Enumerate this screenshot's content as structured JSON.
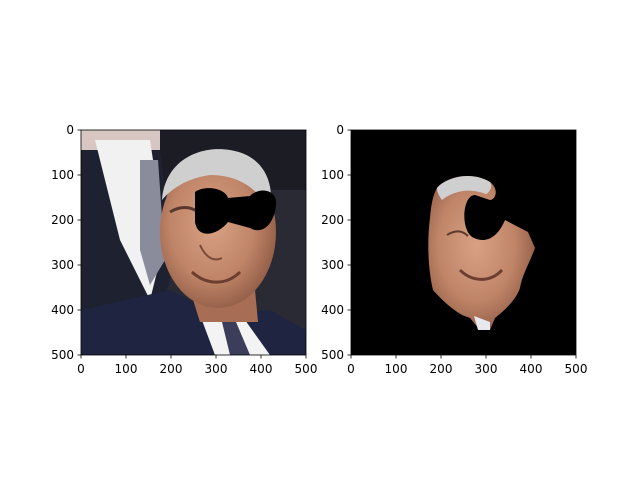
{
  "figure": {
    "background": "#ffffff"
  },
  "chart_data": [
    {
      "type": "image",
      "content": "photo",
      "content_description": "",
      "xlim": [
        0,
        500
      ],
      "ylim": [
        500,
        0
      ],
      "xticks": [
        0,
        100,
        200,
        300,
        400,
        500
      ],
      "yticks": [
        0,
        100,
        200,
        300,
        400,
        500
      ],
      "grid": false,
      "colors": {
        "suit": "#1f2440",
        "face": "#c48a6e",
        "hair": "#cfcfcf",
        "mask": "#000000",
        "shirt": "#f3f3f3",
        "tie": "#3b3d5a",
        "bg_top": "#e6d9d6"
      }
    },
    {
      "type": "image",
      "content": "segmented-face",
      "content_description": "",
      "xlim": [
        0,
        500
      ],
      "ylim": [
        500,
        0
      ],
      "xticks": [
        0,
        100,
        200,
        300,
        400,
        500
      ],
      "yticks": [
        0,
        100,
        200,
        300,
        400,
        500
      ],
      "grid": false,
      "colors": {
        "background": "#000000",
        "face": "#c48a6e"
      }
    }
  ]
}
